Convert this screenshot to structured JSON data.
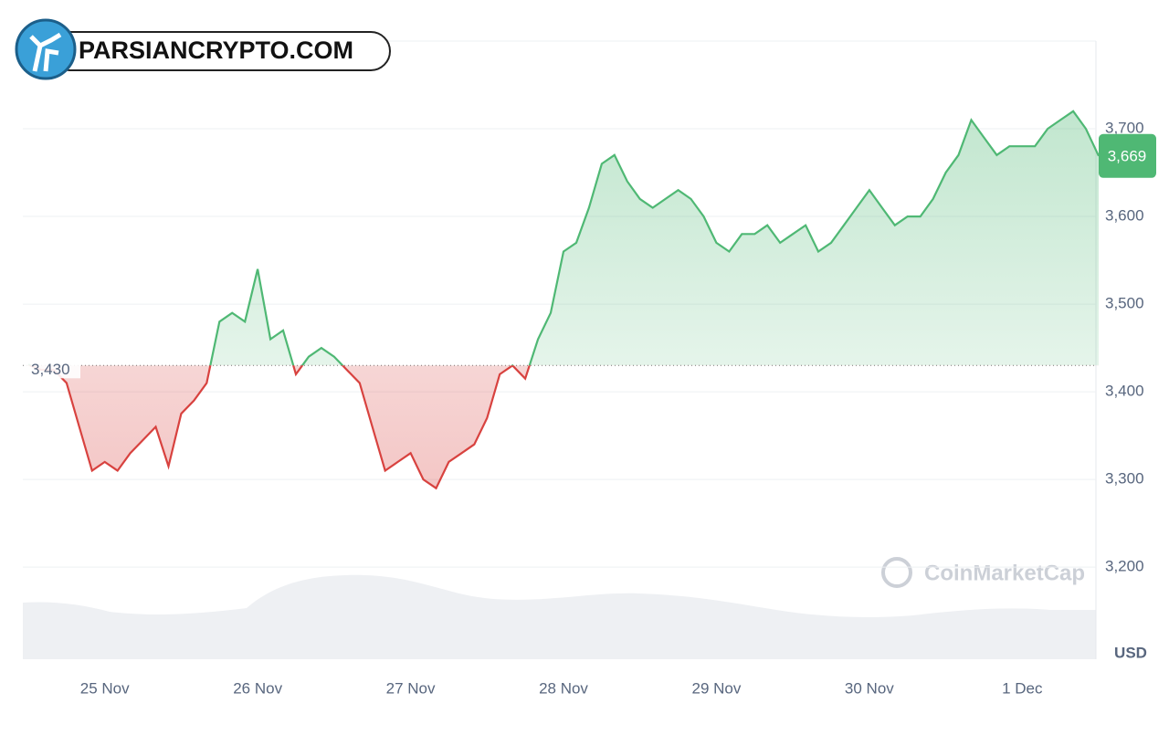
{
  "logo": "PARSIANCRYPTO.COM",
  "chart_data": {
    "type": "line",
    "watermark": "CoinMarketCap",
    "y_label": "USD",
    "categories": [
      null,
      null,
      null,
      null,
      null,
      null,
      "25 Nov",
      null,
      null,
      null,
      null,
      null,
      null,
      null,
      null,
      null,
      null,
      null,
      "26 Nov",
      null,
      null,
      null,
      null,
      null,
      null,
      null,
      null,
      null,
      null,
      null,
      "27 Nov",
      null,
      null,
      null,
      null,
      null,
      null,
      null,
      null,
      null,
      null,
      null,
      "28 Nov",
      null,
      null,
      null,
      null,
      null,
      null,
      null,
      null,
      null,
      null,
      null,
      "29 Nov",
      null,
      null,
      null,
      null,
      null,
      null,
      null,
      null,
      null,
      null,
      null,
      "30 Nov",
      null,
      null,
      null,
      null,
      null,
      null,
      null,
      null,
      null,
      null,
      null,
      "1 Dec",
      null,
      null,
      null,
      null,
      null,
      null
    ],
    "series": [
      {
        "values": [
          3431,
          3425,
          3425,
          3410,
          3360,
          3310,
          3320,
          3310,
          3330,
          3345,
          3360,
          3315,
          3375,
          3390,
          3410,
          3480,
          3490,
          3480,
          3540,
          3460,
          3470,
          3420,
          3440,
          3450,
          3440,
          3425,
          3410,
          3360,
          3310,
          3320,
          3330,
          3300,
          3290,
          3320,
          3330,
          3340,
          3370,
          3420,
          3430,
          3415,
          3460,
          3490,
          3560,
          3570,
          3610,
          3660,
          3670,
          3640,
          3620,
          3610,
          3620,
          3630,
          3620,
          3600,
          3570,
          3560,
          3580,
          3580,
          3590,
          3570,
          3580,
          3590,
          3560,
          3570,
          3590,
          3610,
          3630,
          3610,
          3590,
          3600,
          3600,
          3620,
          3650,
          3670,
          3710,
          3690,
          3670,
          3680,
          3680,
          3680,
          3700,
          3710,
          3720,
          3700,
          3669
        ],
        "value_labels": [
          null,
          null,
          null,
          null,
          null,
          null,
          null,
          null,
          null,
          null,
          null,
          null,
          null,
          null,
          null,
          null,
          null,
          null,
          null,
          null,
          null,
          null,
          null,
          null,
          null,
          null,
          null,
          null,
          null,
          null,
          null,
          null,
          null,
          null,
          null,
          null,
          null,
          null,
          null,
          null,
          null,
          null,
          null,
          null,
          null,
          null,
          null,
          null,
          null,
          null,
          null,
          null,
          null,
          null,
          null,
          null,
          null,
          null,
          null,
          null,
          null,
          null,
          null,
          null,
          null,
          null,
          null,
          null,
          null,
          null,
          null,
          null,
          null,
          null,
          null,
          null,
          null,
          null,
          null,
          null,
          null,
          null,
          null,
          null,
          "3,669"
        ],
        "color": "#4fb874",
        "down_color": "#d8423f"
      }
    ],
    "baseline": {
      "value": 3430,
      "label": "3,430"
    },
    "ylim": [
      3095,
      3800
    ],
    "yticks": [
      {
        "value": 3200,
        "label": "3,200"
      },
      {
        "value": 3300,
        "label": "3,300"
      },
      {
        "value": 3400,
        "label": "3,400"
      },
      {
        "value": 3500,
        "label": "3,500"
      },
      {
        "value": 3600,
        "label": "3,600"
      },
      {
        "value": 3700,
        "label": "3,700"
      }
    ],
    "grid": true
  }
}
